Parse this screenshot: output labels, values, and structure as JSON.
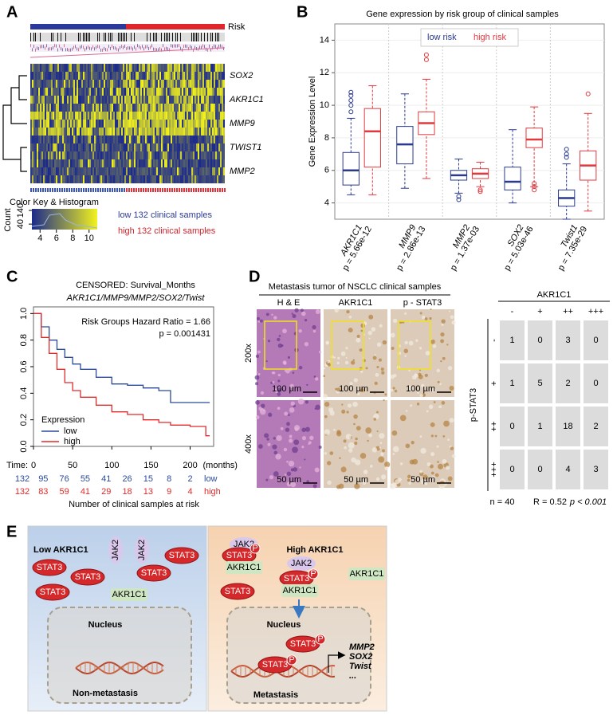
{
  "panel_labels": [
    "A",
    "B",
    "C",
    "D",
    "E"
  ],
  "panel_a": {
    "risk_label": "Risk",
    "genes": [
      "SOX2",
      "AKR1C1",
      "MMP9",
      "TWIST1",
      "MMP2"
    ],
    "color_key_title": "Color Key & Histogram",
    "count_label": "Count",
    "count_ticks": [
      40,
      140
    ],
    "key_ticks": [
      4,
      6,
      8,
      10
    ],
    "legend": [
      "low 132 clinical samples",
      "high 132 clinical samples"
    ]
  },
  "chart_data": [
    {
      "type": "box",
      "title": "Gene expression by risk group of clinical samples",
      "ylabel": "Gene Expression Level",
      "categories": [
        "AKR1C1",
        "MMP9",
        "MMP2",
        "SOX2",
        "Twist1"
      ],
      "pvalues": [
        "p = 5.66e-12",
        "p = 2.86e-13",
        "p = 1.37e-03",
        "p = 5.03e-46",
        "p = 7.35e-29"
      ],
      "ylim": [
        3,
        15
      ],
      "yticks": [
        4,
        6,
        8,
        10,
        12,
        14
      ],
      "grid": true,
      "series": [
        {
          "name": "low risk",
          "color": "#2b3a8f",
          "values": [
            {
              "min": 4.5,
              "q1": 5.1,
              "median": 6.0,
              "q3": 7.1,
              "max": 9.2,
              "outliers": [
                9.6,
                10.0,
                10.3,
                10.6,
                10.8
              ]
            },
            {
              "min": 4.9,
              "q1": 6.4,
              "median": 7.6,
              "q3": 8.7,
              "max": 10.7,
              "outliers": []
            },
            {
              "min": 4.6,
              "q1": 5.4,
              "median": 5.7,
              "q3": 6.0,
              "max": 6.7,
              "outliers": [
                4.2,
                4.4
              ]
            },
            {
              "min": 4.0,
              "q1": 4.8,
              "median": 5.3,
              "q3": 6.2,
              "max": 8.5,
              "outliers": []
            },
            {
              "min": 3.0,
              "q1": 3.8,
              "median": 4.3,
              "q3": 4.8,
              "max": 6.4,
              "outliers": [
                6.8,
                7.0,
                7.3
              ]
            }
          ]
        },
        {
          "name": "high risk",
          "color": "#e0393e",
          "values": [
            {
              "min": 4.5,
              "q1": 6.2,
              "median": 8.4,
              "q3": 9.8,
              "max": 11.2,
              "outliers": []
            },
            {
              "min": 5.5,
              "q1": 8.2,
              "median": 8.9,
              "q3": 9.6,
              "max": 11.6,
              "outliers": [
                12.8,
                13.1
              ]
            },
            {
              "min": 5.0,
              "q1": 5.5,
              "median": 5.8,
              "q3": 6.1,
              "max": 6.5,
              "outliers": [
                4.7,
                4.8
              ]
            },
            {
              "min": 5.0,
              "q1": 7.4,
              "median": 7.9,
              "q3": 8.6,
              "max": 9.9,
              "outliers": [
                4.8,
                5.0,
                5.2
              ]
            },
            {
              "min": 3.5,
              "q1": 5.4,
              "median": 6.3,
              "q3": 7.2,
              "max": 9.5,
              "outliers": [
                10.7
              ]
            }
          ]
        }
      ]
    },
    {
      "type": "line",
      "step": true,
      "title": "CENSORED: Survival_Months",
      "subtitle": "AKR1C1/MMP9/MMP2/SOX2/Twist",
      "x": [
        0,
        10,
        20,
        30,
        40,
        50,
        60,
        80,
        100,
        120,
        140,
        160,
        175,
        200,
        215,
        220,
        225
      ],
      "xlim": [
        0,
        230
      ],
      "xticks": [
        0,
        50,
        100,
        150,
        200
      ],
      "x_unit": "(months)",
      "ylim": [
        0,
        1.05
      ],
      "yticks": [
        {
          "value": 0,
          "label": "0.0"
        },
        {
          "value": 0.2,
          "label": "0.2"
        },
        {
          "value": 0.4,
          "label": "0.4"
        },
        {
          "value": 0.6,
          "label": "0.6"
        },
        {
          "value": 0.8,
          "label": "0.8"
        },
        {
          "value": 1,
          "label": "1.0"
        }
      ],
      "legend_title": "Expression",
      "series": [
        {
          "name": "low",
          "color": "#2b4a9a",
          "values": [
            1,
            0.9,
            0.8,
            0.73,
            0.67,
            0.62,
            0.58,
            0.52,
            0.47,
            0.46,
            0.44,
            0.42,
            0.33,
            0.33,
            0.33,
            0.33,
            0.33
          ]
        },
        {
          "name": "high",
          "color": "#e02a2a",
          "values": [
            1,
            0.82,
            0.7,
            0.58,
            0.48,
            0.42,
            0.37,
            0.31,
            0.26,
            0.24,
            0.2,
            0.18,
            0.16,
            0.15,
            0.15,
            0.08,
            0.08
          ]
        }
      ],
      "annotations": [
        "Risk Groups Hazard Ratio = 1.66",
        "p = 0.001431"
      ],
      "risk_table": {
        "label": "Time:",
        "rows": [
          {
            "name": "low",
            "values": [
              132,
              95,
              76,
              55,
              41,
              26,
              15,
              8,
              2
            ]
          },
          {
            "name": "high",
            "values": [
              132,
              83,
              59,
              41,
              29,
              18,
              13,
              9,
              4
            ]
          }
        ],
        "caption": "Number of  clinical samples at risk"
      }
    }
  ],
  "panel_d": {
    "title": "Metastasis tumor of NSCLC clinical samples",
    "columns": [
      "H & E",
      "AKR1C1",
      "p - STAT3"
    ],
    "rows": [
      "200x",
      "400x"
    ],
    "scale_bars": [
      [
        "100 µm",
        "100 µm",
        "100 µm"
      ],
      [
        "50 µm",
        "50 µm",
        "50 µm"
      ]
    ],
    "table": {
      "title": "AKR1C1",
      "col_labels": [
        "-",
        "+",
        "++",
        "+++"
      ],
      "row_title": "p-STAT3",
      "row_labels": [
        "-",
        "+",
        "++",
        "+++"
      ],
      "rows": [
        [
          1,
          0,
          3,
          0
        ],
        [
          1,
          5,
          2,
          0
        ],
        [
          0,
          1,
          18,
          2
        ],
        [
          0,
          0,
          4,
          3
        ]
      ]
    },
    "footer": [
      "n = 40",
      "R = 0.52",
      "p < 0.001"
    ]
  },
  "panel_e": {
    "left": {
      "title": "Low AKR1C1",
      "jak2": [
        "JAK2",
        "JAK2"
      ],
      "stat3": [
        "STAT3",
        "STAT3",
        "STAT3",
        "STAT3",
        "STAT3"
      ],
      "akr1c1": [
        "AKR1C1"
      ],
      "nucleus": "Nucleus",
      "outcome": "Non-metastasis"
    },
    "right": {
      "title": "High AKR1C1",
      "jak2": [
        "JAK2",
        "JAK2"
      ],
      "stat3": [
        "STAT3",
        "STAT3",
        "STAT3",
        "STAT3",
        "STAT3"
      ],
      "p": [
        "P",
        "P",
        "P",
        "P"
      ],
      "akr1c1": [
        "AKR1C1",
        "AKR1C1",
        "AKR1C1"
      ],
      "nucleus": "Nucleus",
      "outcome": "Metastasis",
      "targets": [
        "MMP2",
        "SOX2",
        "Twist",
        "..."
      ]
    }
  }
}
